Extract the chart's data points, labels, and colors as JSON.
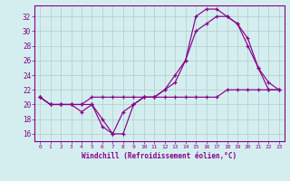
{
  "xlabel": "Windchill (Refroidissement éolien,°C)",
  "bg_color": "#d4eef0",
  "line_color": "#880088",
  "grid_color": "#b0cccc",
  "xlim": [
    -0.5,
    23.5
  ],
  "ylim": [
    15.0,
    33.5
  ],
  "yticks": [
    16,
    18,
    20,
    22,
    24,
    26,
    28,
    30,
    32
  ],
  "xticks": [
    0,
    1,
    2,
    3,
    4,
    5,
    6,
    7,
    8,
    9,
    10,
    11,
    12,
    13,
    14,
    15,
    16,
    17,
    18,
    19,
    20,
    21,
    22,
    23
  ],
  "line1_x": [
    0,
    1,
    2,
    3,
    4,
    5,
    6,
    7,
    8,
    9,
    10,
    11,
    12,
    13,
    14,
    15,
    16,
    17,
    18,
    19,
    20,
    21,
    22,
    23
  ],
  "line1_y": [
    21,
    20,
    20,
    20,
    20,
    20,
    17,
    16,
    16,
    20,
    21,
    21,
    22,
    23,
    26,
    32,
    33,
    33,
    32,
    31,
    28,
    25,
    23,
    22
  ],
  "line2_x": [
    0,
    1,
    2,
    3,
    4,
    5,
    6,
    7,
    8,
    9,
    10,
    11,
    12,
    13,
    14,
    15,
    16,
    17,
    18,
    19,
    20,
    21,
    22,
    23
  ],
  "line2_y": [
    21,
    20,
    20,
    20,
    19,
    20,
    18,
    16,
    19,
    20,
    21,
    21,
    22,
    24,
    26,
    30,
    31,
    32,
    32,
    31,
    29,
    25,
    22,
    22
  ],
  "line3_x": [
    0,
    1,
    2,
    3,
    4,
    5,
    6,
    7,
    8,
    9,
    10,
    11,
    12,
    13,
    14,
    15,
    16,
    17,
    18,
    19,
    20,
    21,
    22,
    23
  ],
  "line3_y": [
    21,
    20,
    20,
    20,
    20,
    21,
    21,
    21,
    21,
    21,
    21,
    21,
    21,
    21,
    21,
    21,
    21,
    21,
    22,
    22,
    22,
    22,
    22,
    22
  ]
}
